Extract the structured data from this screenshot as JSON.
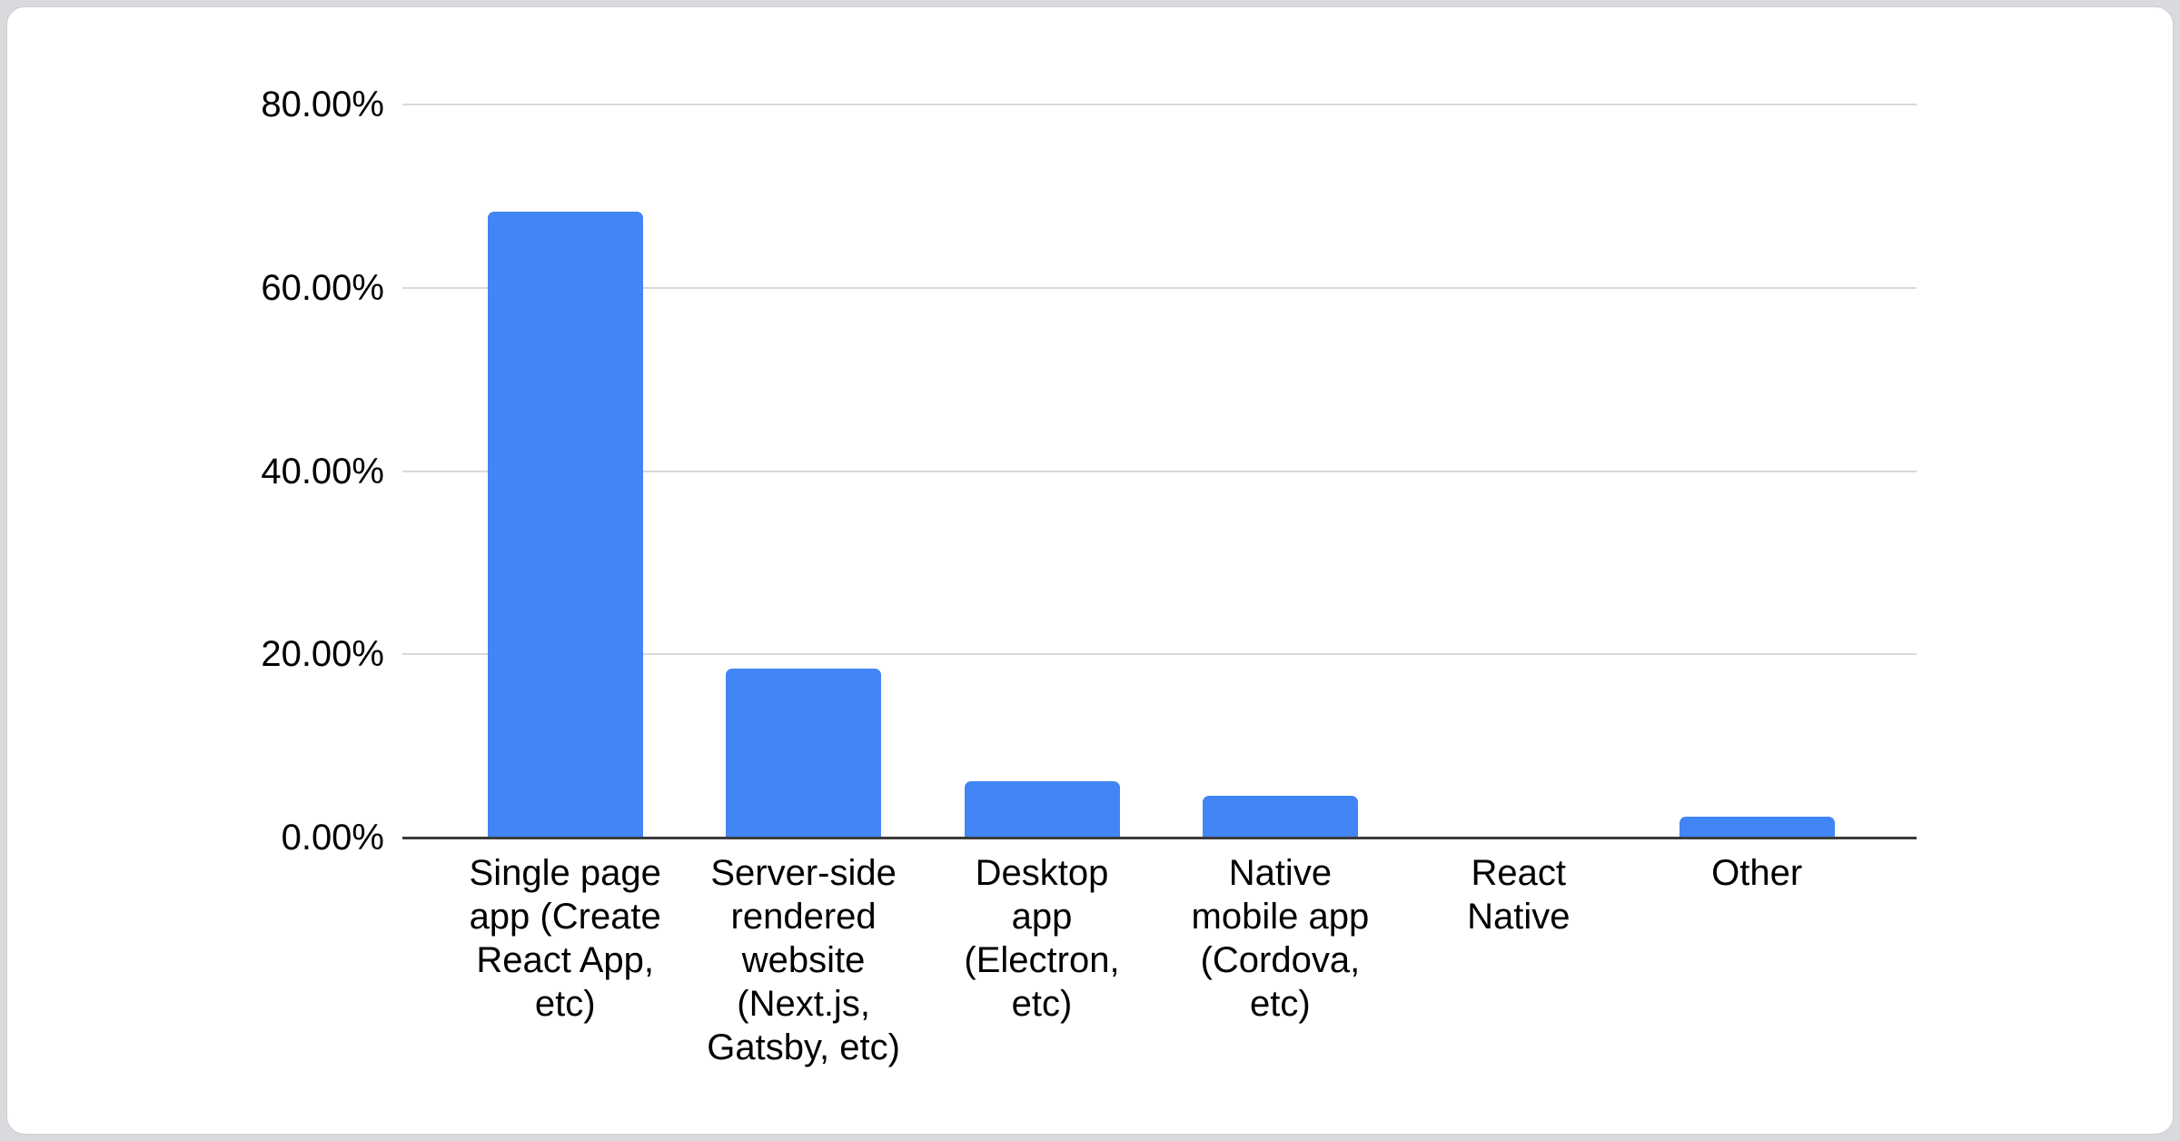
{
  "page": {
    "background_color": "#d8dadd",
    "card_background": "#ffffff"
  },
  "chart_data": {
    "type": "bar",
    "title": "",
    "categories": [
      "Single page app (Create React App, etc)",
      "Server-side rendered website (Next.js, Gatsby, etc)",
      "Desktop app (Electron, etc)",
      "Native mobile app (Cordova, etc)",
      "React Native",
      "Other"
    ],
    "category_labels_wrapped": [
      "Single page\napp (Create\nReact App,\netc)",
      "Server-side\nrendered\nwebsite\n(Next.js,\nGatsby, etc)",
      "Desktop\napp\n(Electron,\netc)",
      "Native\nmobile app\n(Cordova,\netc)",
      "React\nNative",
      "Other"
    ],
    "values": [
      68.3,
      18.4,
      6.1,
      4.6,
      0,
      2.3
    ],
    "unit": "%",
    "xlabel": "",
    "ylabel": "",
    "ylim": [
      0,
      80
    ],
    "yticks": [
      0,
      20,
      40,
      60,
      80
    ],
    "ytick_labels": [
      "0.00%",
      "20.00%",
      "40.00%",
      "60.00%",
      "80.00%"
    ],
    "grid": true,
    "legend": "none",
    "bar_color": "#4285f4",
    "gridline_color": "#d9d9d9",
    "axis_color": "#3b3b3b",
    "text_color": "#000000"
  }
}
